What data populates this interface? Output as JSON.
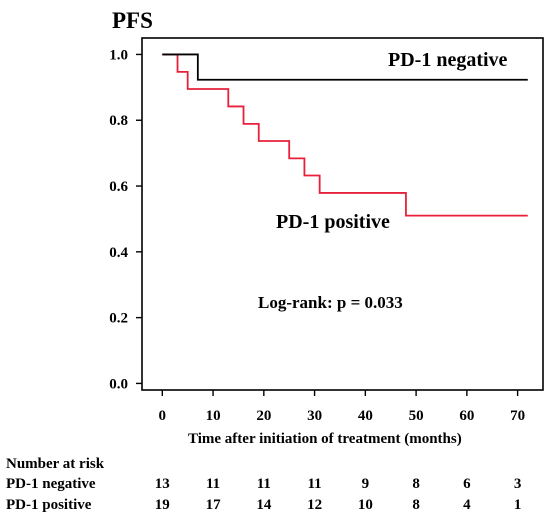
{
  "chart_data": {
    "type": "line",
    "title": "PFS",
    "xlabel": "Time after initiation of treatment (months)",
    "ylabel": "",
    "xlim": [
      -4,
      75
    ],
    "ylim": [
      -0.02,
      1.05
    ],
    "x_ticks": [
      0,
      10,
      20,
      30,
      40,
      50,
      60,
      70
    ],
    "y_ticks": [
      "0.0",
      "0.2",
      "0.4",
      "0.6",
      "0.8",
      "1.0"
    ],
    "y_tick_values": [
      0.0,
      0.2,
      0.4,
      0.6,
      0.8,
      1.0
    ],
    "series": [
      {
        "name": "PD-1 negative",
        "color": "#000000",
        "step_x": [
          0,
          7,
          72
        ],
        "step_y": [
          1.0,
          0.923,
          0.923
        ]
      },
      {
        "name": "PD-1 positive",
        "color": "#e8203a",
        "step_x": [
          0,
          3,
          5,
          13,
          16,
          19,
          25,
          28,
          31,
          48,
          72
        ],
        "step_y": [
          1.0,
          0.947,
          0.895,
          0.842,
          0.789,
          0.737,
          0.684,
          0.632,
          0.579,
          0.51,
          0.51
        ]
      }
    ],
    "annotation": "Log-rank: p = 0.033",
    "risk_table": {
      "title": "Number at risk",
      "times": [
        0,
        10,
        20,
        30,
        40,
        50,
        60,
        70
      ],
      "rows": [
        {
          "label": "PD-1 negative",
          "values": [
            13,
            11,
            11,
            11,
            9,
            8,
            6,
            3
          ]
        },
        {
          "label": "PD-1 positive",
          "values": [
            19,
            17,
            14,
            12,
            10,
            8,
            4,
            1
          ]
        }
      ]
    },
    "legend_placement": "inline labels on curves",
    "grid": false
  }
}
